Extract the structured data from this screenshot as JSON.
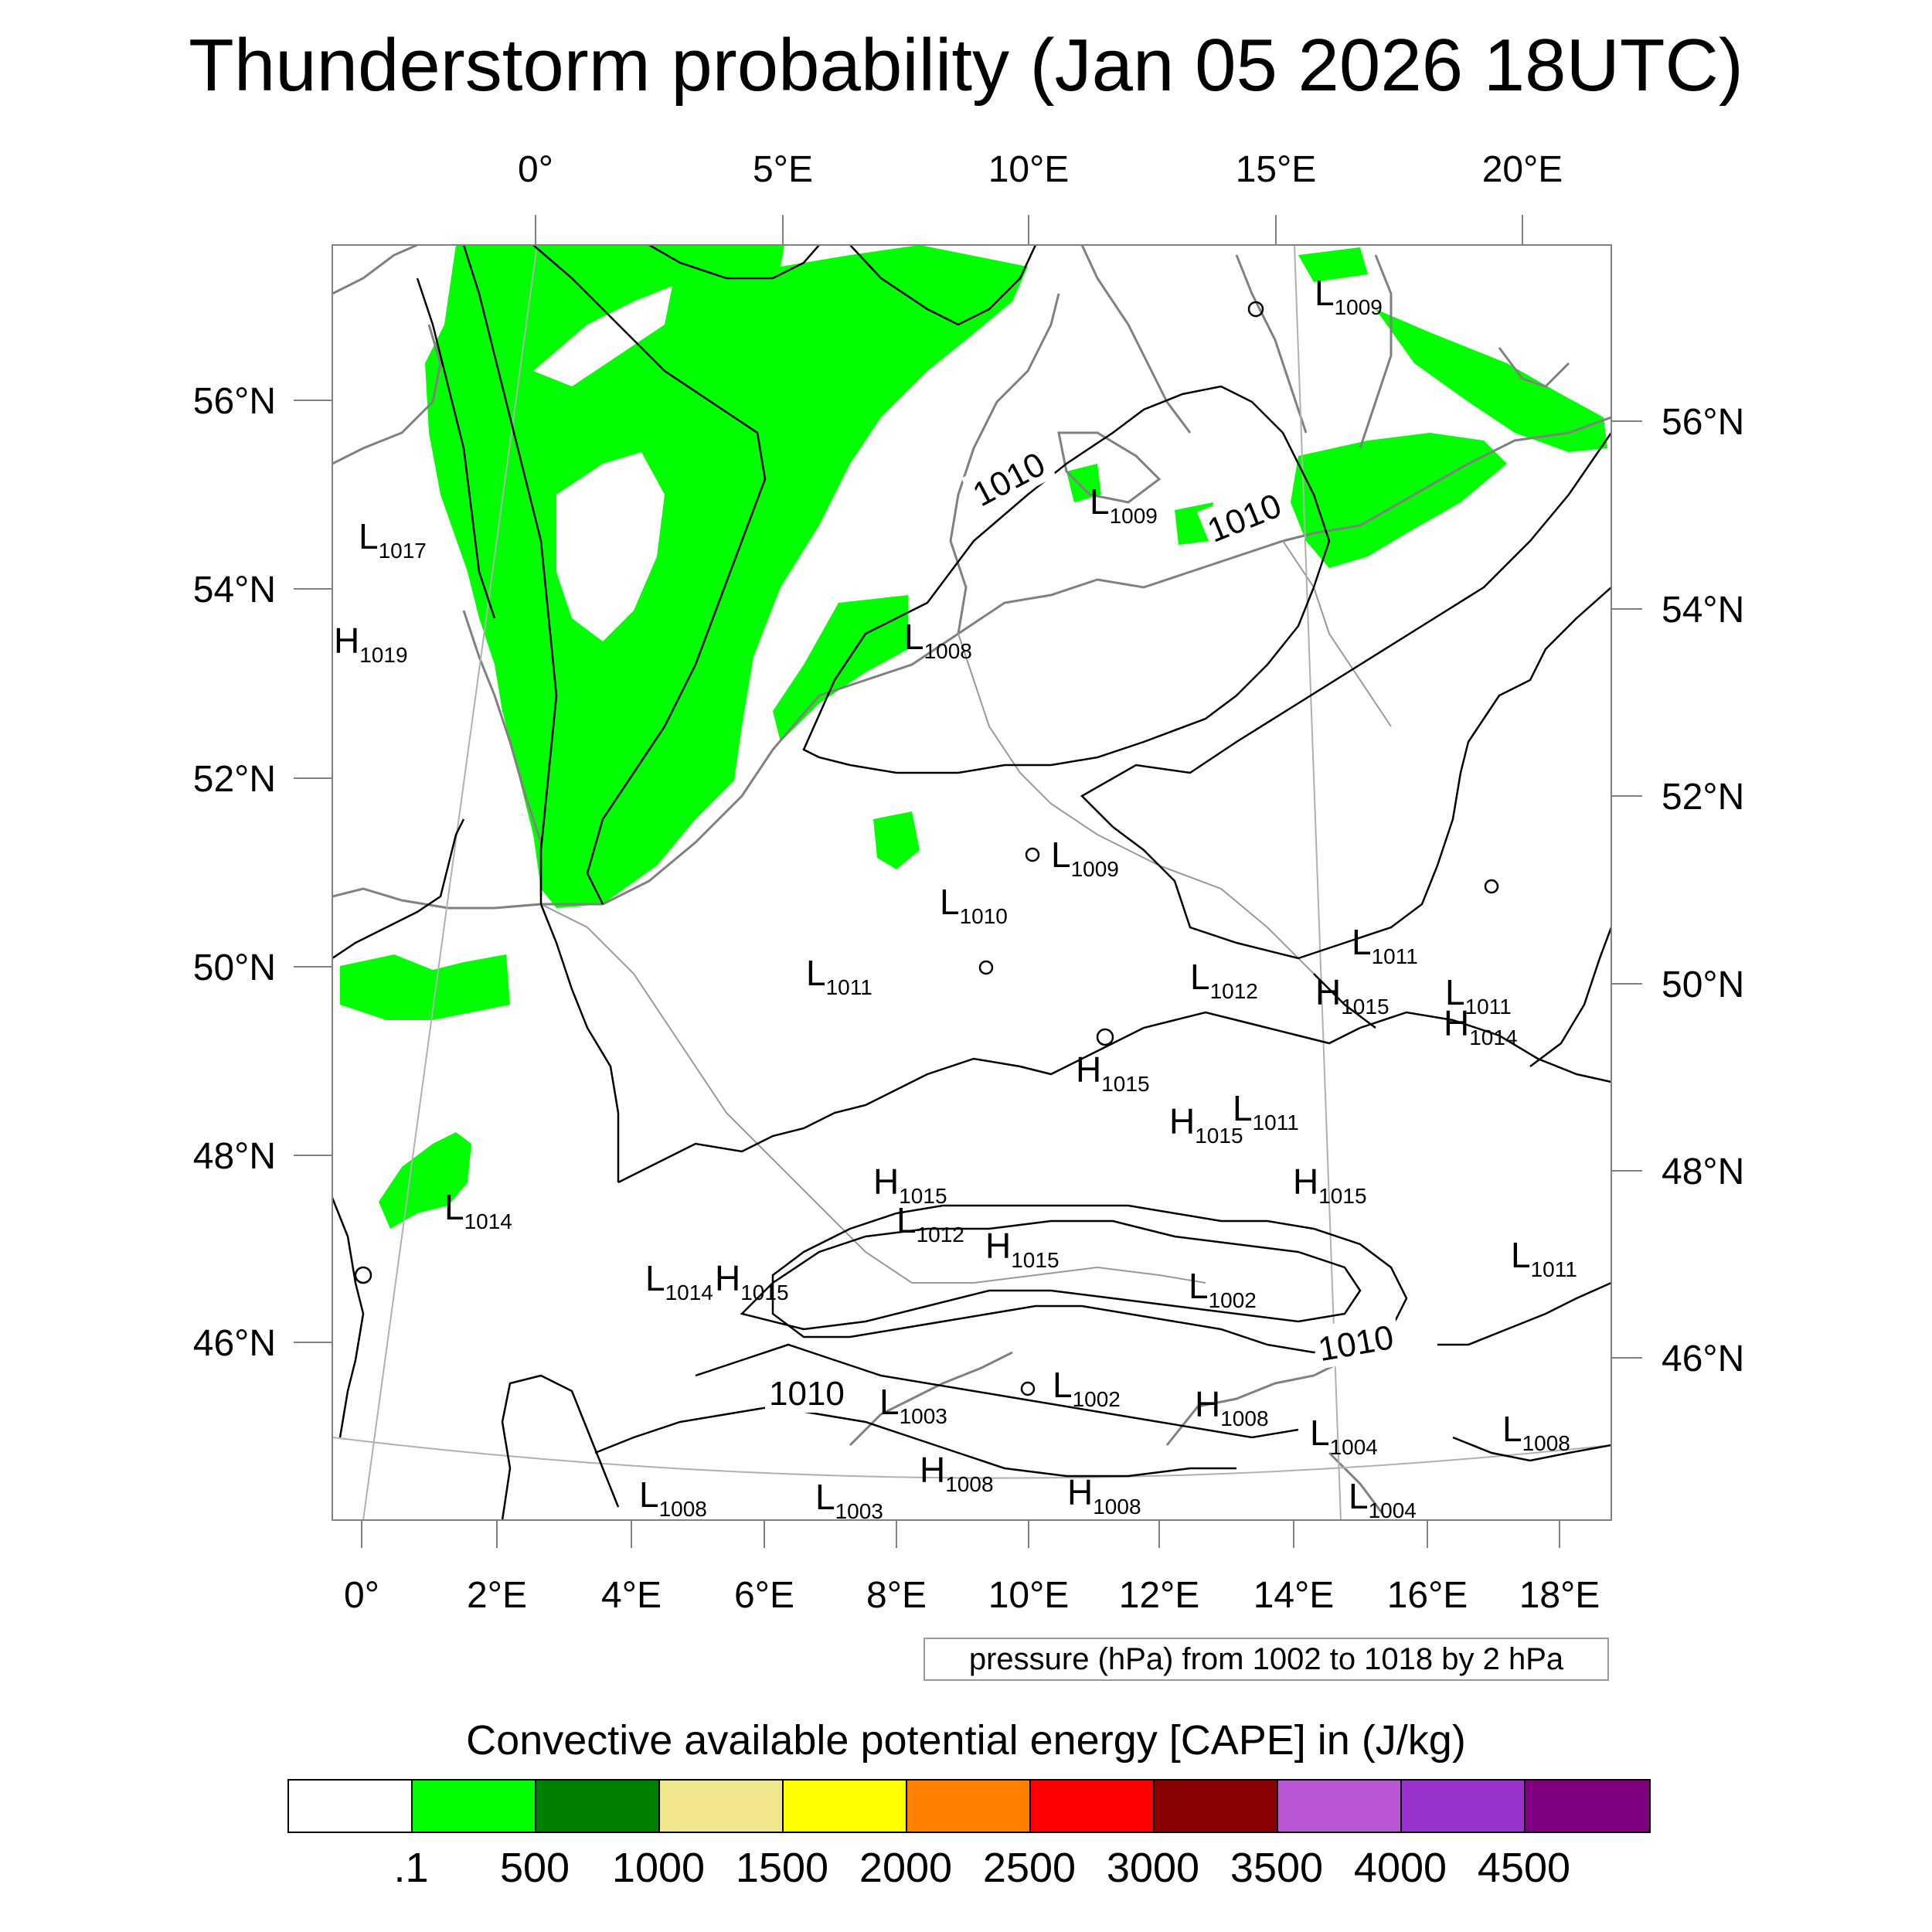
{
  "title": "Thunderstorm probability (Jan 05 2026 18UTC)",
  "map": {
    "top_lon_labels": [
      "0°",
      "5°E",
      "10°E",
      "15°E",
      "20°E"
    ],
    "bottom_lon_labels": [
      "0°",
      "2°E",
      "4°E",
      "6°E",
      "8°E",
      "10°E",
      "12°E",
      "14°E",
      "16°E",
      "18°E"
    ],
    "left_lat_labels": [
      "56°N",
      "54°N",
      "52°N",
      "50°N",
      "48°N",
      "46°N"
    ],
    "right_lat_labels": [
      "56°N",
      "54°N",
      "52°N",
      "50°N",
      "48°N",
      "46°N"
    ],
    "contour_labels": [
      "1010",
      "1010",
      "1010",
      "1010"
    ],
    "pressure_centers": [
      {
        "type": "L",
        "value": "1009"
      },
      {
        "type": "L",
        "value": "1017"
      },
      {
        "type": "H",
        "value": "1019"
      },
      {
        "type": "L",
        "value": "1009"
      },
      {
        "type": "L",
        "value": "1008"
      },
      {
        "type": "L",
        "value": "1009"
      },
      {
        "type": "L",
        "value": "1010"
      },
      {
        "type": "L",
        "value": "1011"
      },
      {
        "type": "L",
        "value": "1011"
      },
      {
        "type": "L",
        "value": "1012"
      },
      {
        "type": "H",
        "value": "1015"
      },
      {
        "type": "L",
        "value": "1011"
      },
      {
        "type": "H",
        "value": "1014"
      },
      {
        "type": "H",
        "value": "1015"
      },
      {
        "type": "H",
        "value": "1015"
      },
      {
        "type": "L",
        "value": "1011"
      },
      {
        "type": "H",
        "value": "1015"
      },
      {
        "type": "H",
        "value": "1015"
      },
      {
        "type": "L",
        "value": "1012"
      },
      {
        "type": "L",
        "value": "1014"
      },
      {
        "type": "H",
        "value": "1015"
      },
      {
        "type": "H",
        "value": "1015"
      },
      {
        "type": "L",
        "value": "1002"
      },
      {
        "type": "L",
        "value": "1011"
      },
      {
        "type": "L",
        "value": "1003"
      },
      {
        "type": "L",
        "value": "1002"
      },
      {
        "type": "H",
        "value": "1008"
      },
      {
        "type": "L",
        "value": "1004"
      },
      {
        "type": "L",
        "value": "1008"
      },
      {
        "type": "L",
        "value": "1008"
      },
      {
        "type": "H",
        "value": "1008"
      },
      {
        "type": "L",
        "value": "1003"
      },
      {
        "type": "H",
        "value": "1008"
      },
      {
        "type": "L",
        "value": "1004"
      },
      {
        "type": "L",
        "value": "1014"
      }
    ],
    "colors": {
      "cape_low": "#00ff00",
      "isobar": "#000000",
      "coast": "#808080"
    }
  },
  "contour_note": "pressure (hPa) from 1002 to 1018 by 2 hPa",
  "colorbar": {
    "title": "Convective available potential energy [CAPE] in (J/kg)",
    "colors": [
      "#ffffff",
      "#00ff00",
      "#008000",
      "#f0e68c",
      "#ffff00",
      "#ff8000",
      "#ff0000",
      "#8b0000",
      "#ba55d3",
      "#9932cc",
      "#800080"
    ],
    "labels": [
      ".1",
      "500",
      "1000",
      "1500",
      "2000",
      "2500",
      "3000",
      "3500",
      "4000",
      "4500"
    ]
  }
}
